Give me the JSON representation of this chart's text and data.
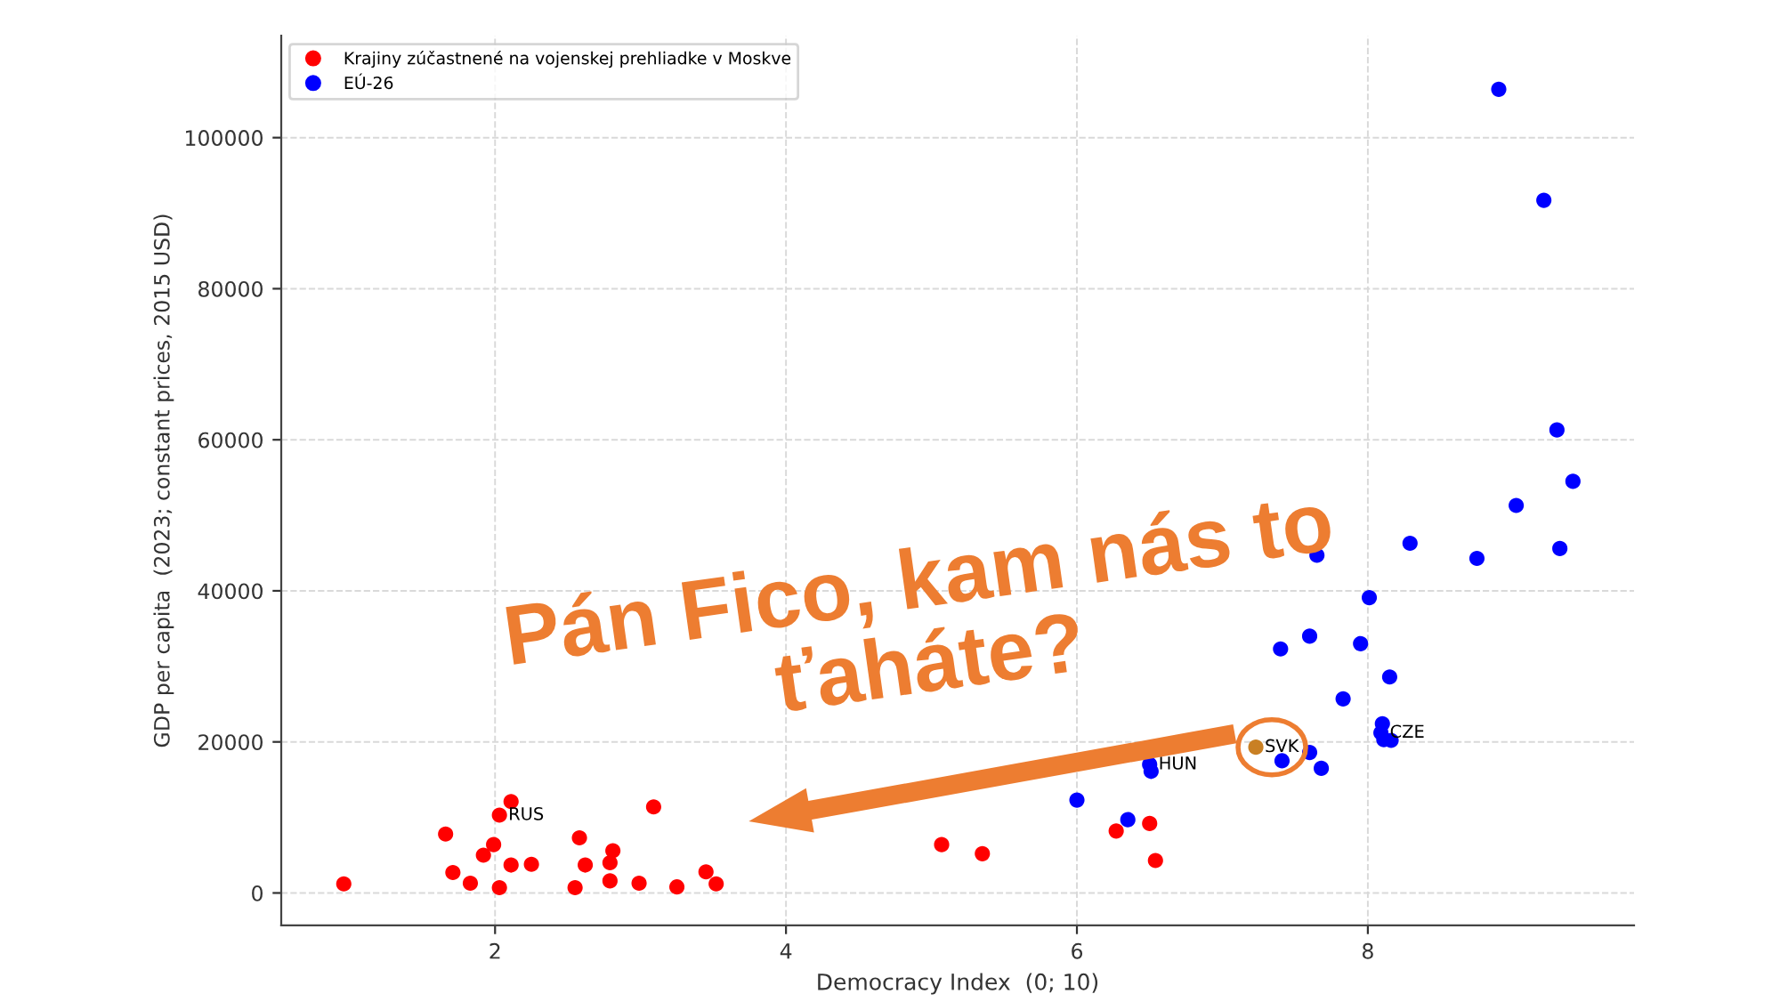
{
  "chart_data": {
    "type": "scatter",
    "xlabel": "Democracy Index  (0; 10)",
    "ylabel": "GDP per capita  (2023; constant prices, 2015 USD)",
    "xlim": [
      0.53,
      9.83
    ],
    "ylim": [
      -4300,
      113500
    ],
    "xticks": [
      2,
      4,
      6,
      8
    ],
    "yticks": [
      0,
      20000,
      40000,
      60000,
      80000,
      100000
    ],
    "grid": true,
    "legend": "top left",
    "marker": "circle",
    "series": [
      {
        "name": "Krajiny zúčastnené na vojenskej prehliadke v Moskve",
        "color": "#ff0000",
        "x": [
          0.96,
          1.66,
          1.71,
          1.83,
          1.92,
          1.99,
          2.03,
          2.03,
          2.11,
          2.11,
          2.25,
          2.55,
          2.58,
          2.62,
          2.79,
          2.79,
          2.81,
          2.99,
          3.09,
          3.25,
          3.45,
          3.52,
          5.07,
          5.35,
          6.27,
          6.5,
          6.54
        ],
        "values": [
          1200,
          7800,
          2700,
          1300,
          5000,
          6400,
          10300,
          700,
          12100,
          3700,
          3800,
          700,
          7300,
          3700,
          1600,
          4000,
          5600,
          1300,
          11400,
          800,
          2800,
          1200,
          6400,
          5200,
          8200,
          9200,
          4300
        ]
      },
      {
        "name": "EÚ-26",
        "color": "#0000ff",
        "x": [
          6.0,
          6.35,
          6.5,
          6.51,
          7.41,
          7.6,
          7.68,
          7.83,
          8.1,
          8.09,
          8.11,
          8.16,
          8.15,
          7.95,
          7.6,
          7.4,
          8.01,
          7.65,
          8.29,
          8.75,
          9.32,
          9.02,
          9.41,
          9.3,
          9.21,
          8.9
        ],
        "values": [
          12300,
          9700,
          17000,
          16100,
          17500,
          18600,
          16500,
          25700,
          22400,
          21200,
          20300,
          20200,
          28600,
          33000,
          34000,
          32300,
          39100,
          44700,
          46300,
          44300,
          45600,
          51300,
          54500,
          61300,
          91700,
          106400
        ]
      },
      {
        "color": "#c98024",
        "x": [
          7.23
        ],
        "values": [
          19300
        ]
      }
    ],
    "annotations": [
      {
        "text": "RUS",
        "x": 2.03,
        "y": 10300
      },
      {
        "text": "HUN",
        "x": 6.5,
        "y": 17000
      },
      {
        "text": "SVK",
        "x": 7.23,
        "y": 19300
      },
      {
        "text": "CZE",
        "x": 8.09,
        "y": 21200
      },
      "Pán Fico, kam nás to\nťaháte?"
    ]
  }
}
